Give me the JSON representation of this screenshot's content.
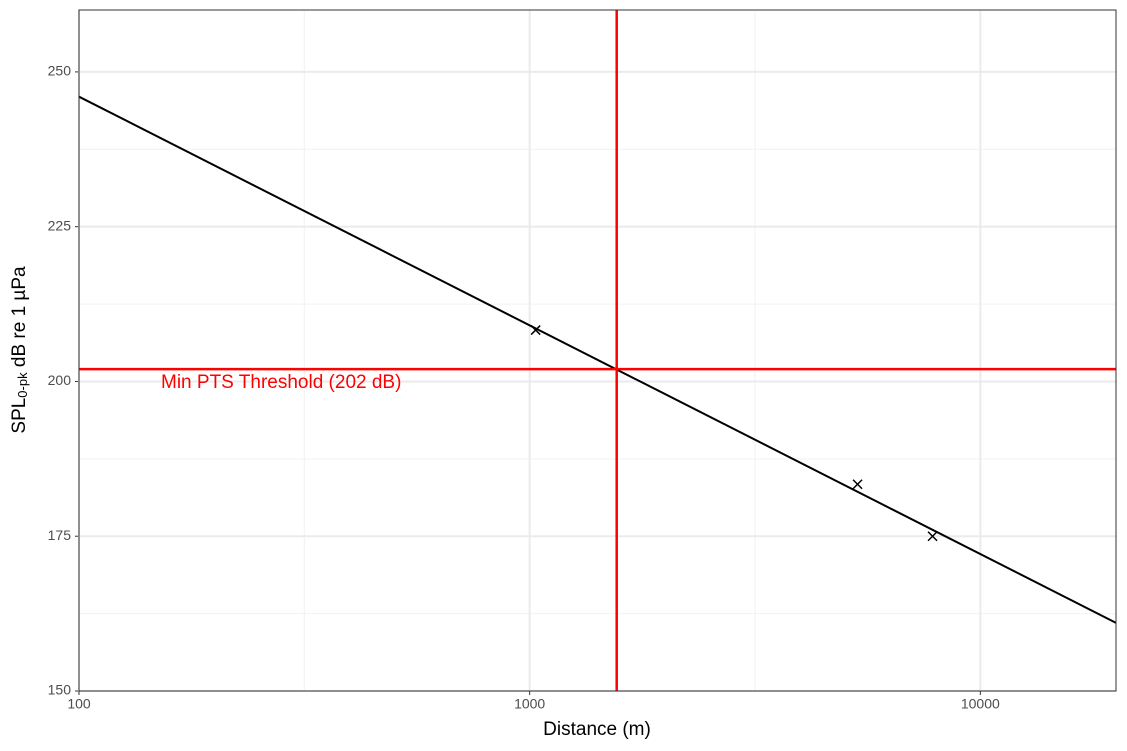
{
  "chart_data": {
    "type": "scatter",
    "x_log": true,
    "grid": true,
    "xlabel": "Distance (m)",
    "ylabel": {
      "main": "SPL",
      "sub": "0-pk",
      "rest": " dB re 1 µPa"
    },
    "xlim": [
      100,
      20000
    ],
    "ylim": [
      150,
      260
    ],
    "xticks": [
      100,
      1000,
      10000
    ],
    "yticks": [
      150,
      175,
      200,
      225,
      250
    ],
    "minor_xticks": [
      316.2,
      3162
    ],
    "minor_yticks": [
      162.5,
      187.5,
      212.5,
      237.5
    ],
    "fit_line": {
      "x": [
        100,
        20000
      ],
      "y": [
        246,
        161
      ],
      "color": "#000000"
    },
    "points": {
      "x": [
        1031,
        5340,
        7834
      ],
      "y": [
        208.3,
        183.4,
        175
      ],
      "color": "#000000"
    },
    "hline": {
      "value": 202,
      "color": "#ff0000",
      "label": "Min PTS Threshold (202 dB)"
    },
    "vline": {
      "value": 1560,
      "color": "#ff0000"
    }
  }
}
